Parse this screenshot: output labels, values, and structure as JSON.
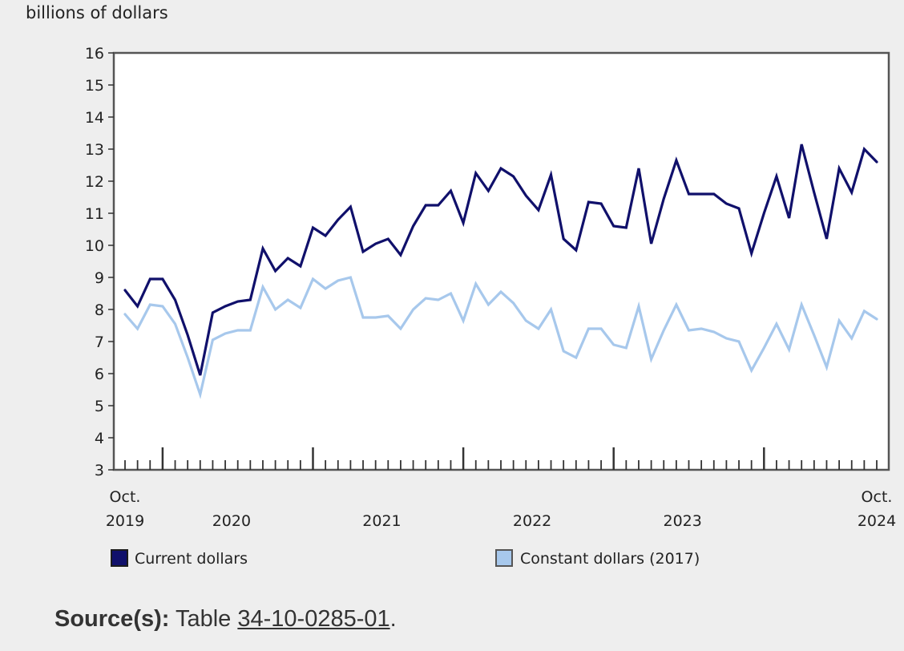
{
  "source": {
    "prefix": "Source(s):",
    "table_text": "Table",
    "link_text": "34-10-0285-01",
    "suffix": "."
  },
  "chart_data": {
    "type": "line",
    "unit_label": "billions of dollars",
    "ylim": [
      3,
      16
    ],
    "yticks": [
      3,
      4,
      5,
      6,
      7,
      8,
      9,
      10,
      11,
      12,
      13,
      14,
      15,
      16
    ],
    "x": [
      "2019-10",
      "2019-11",
      "2019-12",
      "2020-01",
      "2020-02",
      "2020-03",
      "2020-04",
      "2020-05",
      "2020-06",
      "2020-07",
      "2020-08",
      "2020-09",
      "2020-10",
      "2020-11",
      "2020-12",
      "2021-01",
      "2021-02",
      "2021-03",
      "2021-04",
      "2021-05",
      "2021-06",
      "2021-07",
      "2021-08",
      "2021-09",
      "2021-10",
      "2021-11",
      "2021-12",
      "2022-01",
      "2022-02",
      "2022-03",
      "2022-04",
      "2022-05",
      "2022-06",
      "2022-07",
      "2022-08",
      "2022-09",
      "2022-10",
      "2022-11",
      "2022-12",
      "2023-01",
      "2023-02",
      "2023-03",
      "2023-04",
      "2023-05",
      "2023-06",
      "2023-07",
      "2023-08",
      "2023-09",
      "2023-10",
      "2023-11",
      "2023-12",
      "2024-01",
      "2024-02",
      "2024-03",
      "2024-04",
      "2024-05",
      "2024-06",
      "2024-07",
      "2024-08",
      "2024-09",
      "2024-10"
    ],
    "x_tick_labels": [
      {
        "label": "Oct.",
        "sub": "2019"
      },
      {
        "label": "",
        "sub": "2020"
      },
      {
        "label": "",
        "sub": "2021"
      },
      {
        "label": "",
        "sub": "2022"
      },
      {
        "label": "",
        "sub": "2023"
      },
      {
        "label": "Oct.",
        "sub": "2024"
      }
    ],
    "grid": false,
    "legend_position": "bottom",
    "series": [
      {
        "name": "Current dollars",
        "color": "#10106b",
        "values": [
          8.6,
          8.1,
          8.95,
          8.95,
          8.3,
          7.2,
          5.95,
          7.9,
          8.1,
          8.25,
          8.3,
          9.9,
          9.2,
          9.6,
          9.35,
          10.55,
          10.3,
          10.8,
          11.2,
          9.8,
          10.05,
          10.2,
          9.7,
          10.6,
          11.25,
          11.25,
          11.7,
          10.7,
          12.25,
          11.7,
          12.4,
          12.15,
          11.55,
          11.1,
          12.2,
          10.2,
          9.85,
          11.35,
          11.3,
          10.6,
          10.55,
          12.4,
          10.05,
          11.45,
          12.65,
          11.6,
          11.6,
          11.6,
          11.3,
          11.15,
          9.75,
          11.0,
          12.15,
          10.85,
          13.15,
          11.65,
          10.2,
          12.4,
          11.65,
          13.0,
          12.6
        ]
      },
      {
        "name": "Constant dollars (2017)",
        "color": "#a7c8ec",
        "values": [
          7.85,
          7.4,
          8.15,
          8.1,
          7.55,
          6.5,
          5.35,
          7.05,
          7.25,
          7.35,
          7.35,
          8.7,
          8.0,
          8.3,
          8.05,
          8.95,
          8.65,
          8.9,
          9.0,
          7.75,
          7.75,
          7.8,
          7.4,
          8.0,
          8.35,
          8.3,
          8.5,
          7.65,
          8.8,
          8.15,
          8.55,
          8.2,
          7.65,
          7.4,
          8.0,
          6.7,
          6.5,
          7.4,
          7.4,
          6.9,
          6.8,
          8.1,
          6.45,
          7.35,
          8.15,
          7.35,
          7.4,
          7.3,
          7.1,
          7.0,
          6.1,
          6.8,
          7.55,
          6.75,
          8.15,
          7.2,
          6.2,
          7.65,
          7.1,
          7.95,
          7.7
        ]
      }
    ]
  }
}
